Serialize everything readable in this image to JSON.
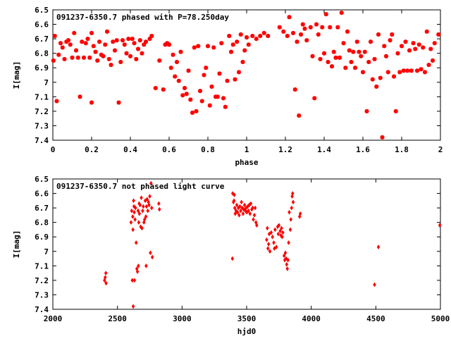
{
  "chart_data": [
    {
      "type": "scatter",
      "title": "091237-6350.7 phased with P=78.250day",
      "xlabel": "phase",
      "ylabel": "I[mag]",
      "xlim": [
        0,
        2
      ],
      "ylim": [
        7.4,
        6.5
      ],
      "y_inverted": true,
      "grid": false,
      "marker_color": "#ff0000",
      "marker": "asterisk",
      "xticks": [
        "0",
        "0.2",
        "0.4",
        "0.6",
        "0.8",
        "1",
        "1.2",
        "1.4",
        "1.6",
        "1.8",
        "2"
      ],
      "yticks": [
        "6.5",
        "6.6",
        "6.7",
        "6.8",
        "6.9",
        "7",
        "7.1",
        "7.2",
        "7.3",
        "7.4"
      ],
      "points": [
        [
          0.003,
          6.85
        ],
        [
          0.01,
          6.68
        ],
        [
          0.02,
          7.13
        ],
        [
          0.03,
          6.81
        ],
        [
          0.04,
          6.73
        ],
        [
          0.05,
          6.76
        ],
        [
          0.06,
          6.84
        ],
        [
          0.07,
          6.72
        ],
        [
          0.08,
          6.71
        ],
        [
          0.09,
          6.74
        ],
        [
          0.1,
          6.83
        ],
        [
          0.11,
          6.66
        ],
        [
          0.12,
          6.78
        ],
        [
          0.13,
          6.83
        ],
        [
          0.14,
          7.1
        ],
        [
          0.15,
          6.72
        ],
        [
          0.16,
          6.83
        ],
        [
          0.17,
          6.73
        ],
        [
          0.18,
          6.7
        ],
        [
          0.19,
          6.83
        ],
        [
          0.2,
          6.66
        ],
        [
          0.2,
          7.14
        ],
        [
          0.21,
          6.75
        ],
        [
          0.22,
          6.79
        ],
        [
          0.23,
          6.85
        ],
        [
          0.24,
          6.72
        ],
        [
          0.25,
          6.81
        ],
        [
          0.26,
          6.82
        ],
        [
          0.27,
          6.74
        ],
        [
          0.28,
          6.65
        ],
        [
          0.29,
          6.84
        ],
        [
          0.3,
          6.88
        ],
        [
          0.31,
          6.72
        ],
        [
          0.32,
          6.78
        ],
        [
          0.33,
          6.71
        ],
        [
          0.34,
          7.14
        ],
        [
          0.35,
          6.86
        ],
        [
          0.36,
          6.71
        ],
        [
          0.37,
          6.74
        ],
        [
          0.38,
          6.8
        ],
        [
          0.39,
          6.7
        ],
        [
          0.4,
          6.82
        ],
        [
          0.41,
          6.7
        ],
        [
          0.42,
          6.73
        ],
        [
          0.43,
          6.84
        ],
        [
          0.44,
          6.77
        ],
        [
          0.45,
          6.71
        ],
        [
          0.46,
          6.8
        ],
        [
          0.47,
          6.74
        ],
        [
          0.48,
          6.72
        ],
        [
          0.5,
          6.7
        ],
        [
          0.51,
          6.68
        ],
        [
          0.53,
          7.04
        ],
        [
          0.55,
          6.85
        ],
        [
          0.57,
          7.05
        ],
        [
          0.58,
          6.74
        ],
        [
          0.59,
          6.73
        ],
        [
          0.6,
          6.74
        ],
        [
          0.61,
          6.9
        ],
        [
          0.62,
          6.81
        ],
        [
          0.63,
          6.96
        ],
        [
          0.64,
          6.86
        ],
        [
          0.65,
          6.99
        ],
        [
          0.66,
          6.79
        ],
        [
          0.67,
          7.09
        ],
        [
          0.68,
          7.04
        ],
        [
          0.69,
          7.08
        ],
        [
          0.7,
          6.92
        ],
        [
          0.71,
          7.12
        ],
        [
          0.72,
          7.21
        ],
        [
          0.73,
          6.76
        ],
        [
          0.74,
          7.2
        ],
        [
          0.75,
          6.75
        ],
        [
          0.76,
          7.06
        ],
        [
          0.77,
          7.13
        ],
        [
          0.78,
          6.95
        ],
        [
          0.79,
          6.9
        ],
        [
          0.8,
          6.75
        ],
        [
          0.81,
          7.16
        ],
        [
          0.82,
          7.03
        ],
        [
          0.83,
          6.76
        ],
        [
          0.84,
          7.1
        ],
        [
          0.85,
          7.1
        ],
        [
          0.86,
          6.94
        ],
        [
          0.87,
          6.73
        ],
        [
          0.88,
          7.11
        ],
        [
          0.89,
          7.17
        ],
        [
          0.9,
          6.99
        ],
        [
          0.91,
          6.68
        ],
        [
          0.92,
          6.79
        ],
        [
          0.93,
          6.74
        ],
        [
          0.94,
          6.98
        ],
        [
          0.95,
          6.72
        ],
        [
          0.96,
          6.93
        ],
        [
          0.97,
          6.67
        ],
        [
          0.98,
          6.86
        ],
        [
          0.99,
          6.78
        ],
        [
          1.0,
          6.69
        ],
        [
          1.01,
          6.74
        ],
        [
          1.03,
          6.68
        ],
        [
          1.05,
          6.7
        ],
        [
          1.07,
          6.68
        ],
        [
          1.09,
          6.66
        ],
        [
          1.11,
          6.68
        ],
        [
          1.17,
          6.62
        ],
        [
          1.19,
          6.65
        ],
        [
          1.21,
          6.68
        ],
        [
          1.22,
          6.55
        ],
        [
          1.24,
          6.66
        ],
        [
          1.25,
          7.05
        ],
        [
          1.26,
          6.72
        ],
        [
          1.27,
          7.23
        ],
        [
          1.28,
          6.67
        ],
        [
          1.29,
          6.6
        ],
        [
          1.3,
          6.63
        ],
        [
          1.31,
          6.71
        ],
        [
          1.33,
          6.62
        ],
        [
          1.34,
          6.82
        ],
        [
          1.35,
          7.11
        ],
        [
          1.36,
          6.6
        ],
        [
          1.37,
          6.67
        ],
        [
          1.38,
          6.84
        ],
        [
          1.39,
          6.62
        ],
        [
          1.4,
          6.8
        ],
        [
          1.41,
          6.53
        ],
        [
          1.42,
          6.86
        ],
        [
          1.43,
          6.62
        ],
        [
          1.44,
          6.89
        ],
        [
          1.45,
          6.79
        ],
        [
          1.46,
          6.83
        ],
        [
          1.47,
          6.62
        ],
        [
          1.48,
          6.83
        ],
        [
          1.49,
          6.52
        ],
        [
          1.5,
          6.73
        ],
        [
          1.51,
          6.9
        ],
        [
          1.52,
          6.65
        ],
        [
          1.53,
          6.78
        ],
        [
          1.54,
          6.86
        ],
        [
          1.55,
          6.79
        ],
        [
          1.56,
          6.9
        ],
        [
          1.57,
          6.72
        ],
        [
          1.58,
          6.79
        ],
        [
          1.59,
          6.82
        ],
        [
          1.6,
          6.93
        ],
        [
          1.61,
          6.79
        ],
        [
          1.62,
          7.2
        ],
        [
          1.63,
          6.86
        ],
        [
          1.64,
          6.72
        ],
        [
          1.65,
          6.98
        ],
        [
          1.66,
          6.84
        ],
        [
          1.67,
          7.03
        ],
        [
          1.68,
          6.67
        ],
        [
          1.69,
          6.97
        ],
        [
          1.7,
          7.38
        ],
        [
          1.71,
          6.75
        ],
        [
          1.72,
          6.82
        ],
        [
          1.73,
          6.93
        ],
        [
          1.74,
          6.71
        ],
        [
          1.75,
          6.67
        ],
        [
          1.76,
          6.96
        ],
        [
          1.77,
          7.2
        ],
        [
          1.78,
          6.8
        ],
        [
          1.79,
          6.93
        ],
        [
          1.8,
          6.75
        ],
        [
          1.81,
          6.92
        ],
        [
          1.82,
          6.72
        ],
        [
          1.83,
          6.92
        ],
        [
          1.84,
          6.78
        ],
        [
          1.85,
          6.92
        ],
        [
          1.86,
          6.73
        ],
        [
          1.87,
          6.77
        ],
        [
          1.88,
          6.92
        ],
        [
          1.89,
          6.74
        ],
        [
          1.9,
          6.91
        ],
        [
          1.91,
          6.76
        ],
        [
          1.92,
          6.93
        ],
        [
          1.93,
          6.65
        ],
        [
          1.94,
          6.88
        ],
        [
          1.95,
          6.77
        ],
        [
          1.96,
          6.85
        ],
        [
          1.97,
          6.73
        ],
        [
          1.99,
          6.67
        ]
      ]
    },
    {
      "type": "scatter",
      "title": "091237-6350.7 not phased light curve",
      "xlabel": "hjd0",
      "ylabel": "I[mag]",
      "xlim": [
        2000,
        5000
      ],
      "ylim": [
        7.4,
        6.5
      ],
      "y_inverted": true,
      "grid": false,
      "marker_color": "#ff0000",
      "marker": "diamond",
      "xticks": [
        "2000",
        "2500",
        "3000",
        "3500",
        "4000",
        "4500",
        "5000"
      ],
      "yticks": [
        "6.5",
        "6.6",
        "6.7",
        "6.8",
        "6.9",
        "7",
        "7.1",
        "7.2",
        "7.3",
        "7.4"
      ],
      "points": [
        [
          2400,
          7.2
        ],
        [
          2405,
          7.18
        ],
        [
          2410,
          7.15
        ],
        [
          2412,
          7.22
        ],
        [
          2605,
          6.8
        ],
        [
          2610,
          6.72
        ],
        [
          2615,
          7.2
        ],
        [
          2618,
          6.76
        ],
        [
          2620,
          6.85
        ],
        [
          2622,
          7.38
        ],
        [
          2625,
          6.65
        ],
        [
          2628,
          6.69
        ],
        [
          2630,
          6.73
        ],
        [
          2632,
          7.2
        ],
        [
          2636,
          6.78
        ],
        [
          2640,
          6.7
        ],
        [
          2645,
          6.94
        ],
        [
          2650,
          7.12
        ],
        [
          2655,
          7.14
        ],
        [
          2660,
          6.72
        ],
        [
          2662,
          7.1
        ],
        [
          2665,
          6.8
        ],
        [
          2668,
          6.67
        ],
        [
          2670,
          6.74
        ],
        [
          2675,
          6.68
        ],
        [
          2680,
          6.83
        ],
        [
          2685,
          6.63
        ],
        [
          2690,
          6.84
        ],
        [
          2695,
          6.72
        ],
        [
          2700,
          6.69
        ],
        [
          2705,
          6.8
        ],
        [
          2710,
          6.78
        ],
        [
          2715,
          6.65
        ],
        [
          2720,
          6.76
        ],
        [
          2722,
          7.1
        ],
        [
          2725,
          6.69
        ],
        [
          2730,
          6.64
        ],
        [
          2735,
          6.72
        ],
        [
          2740,
          6.66
        ],
        [
          2745,
          6.68
        ],
        [
          2750,
          6.62
        ],
        [
          2755,
          7.01
        ],
        [
          2760,
          6.53
        ],
        [
          2765,
          6.7
        ],
        [
          2770,
          7.04
        ],
        [
          2820,
          6.67
        ],
        [
          2825,
          6.71
        ],
        [
          3390,
          7.05
        ],
        [
          3392,
          6.6
        ],
        [
          3398,
          6.66
        ],
        [
          3402,
          6.65
        ],
        [
          3405,
          6.61
        ],
        [
          3408,
          6.7
        ],
        [
          3412,
          6.74
        ],
        [
          3418,
          6.72
        ],
        [
          3424,
          6.68
        ],
        [
          3430,
          6.73
        ],
        [
          3436,
          6.7
        ],
        [
          3442,
          6.75
        ],
        [
          3448,
          6.69
        ],
        [
          3454,
          6.72
        ],
        [
          3460,
          6.66
        ],
        [
          3466,
          6.7
        ],
        [
          3472,
          6.74
        ],
        [
          3478,
          6.71
        ],
        [
          3484,
          6.68
        ],
        [
          3490,
          6.72
        ],
        [
          3496,
          6.7
        ],
        [
          3502,
          6.73
        ],
        [
          3508,
          6.69
        ],
        [
          3514,
          6.72
        ],
        [
          3520,
          6.68
        ],
        [
          3526,
          6.74
        ],
        [
          3532,
          6.67
        ],
        [
          3540,
          6.71
        ],
        [
          3546,
          6.7
        ],
        [
          3552,
          6.78
        ],
        [
          3560,
          6.75
        ],
        [
          3566,
          6.7
        ],
        [
          3572,
          6.8
        ],
        [
          3578,
          6.82
        ],
        [
          3655,
          6.92
        ],
        [
          3660,
          6.84
        ],
        [
          3665,
          6.98
        ],
        [
          3670,
          6.95
        ],
        [
          3675,
          6.88
        ],
        [
          3680,
          7.0
        ],
        [
          3690,
          6.87
        ],
        [
          3700,
          6.9
        ],
        [
          3710,
          6.94
        ],
        [
          3715,
          6.98
        ],
        [
          3720,
          6.85
        ],
        [
          3730,
          6.97
        ],
        [
          3740,
          6.83
        ],
        [
          3745,
          6.88
        ],
        [
          3750,
          6.82
        ],
        [
          3760,
          6.86
        ],
        [
          3765,
          6.89
        ],
        [
          3770,
          6.84
        ],
        [
          3775,
          6.9
        ],
        [
          3780,
          6.87
        ],
        [
          3790,
          7.03
        ],
        [
          3795,
          7.06
        ],
        [
          3800,
          7.01
        ],
        [
          3805,
          7.05
        ],
        [
          3810,
          7.09
        ],
        [
          3815,
          7.12
        ],
        [
          3820,
          7.06
        ],
        [
          3825,
          6.94
        ],
        [
          3830,
          6.73
        ],
        [
          3838,
          6.85
        ],
        [
          3842,
          6.78
        ],
        [
          3848,
          6.7
        ],
        [
          3852,
          6.62
        ],
        [
          3856,
          6.6
        ],
        [
          3860,
          6.66
        ],
        [
          3910,
          6.76
        ],
        [
          3915,
          6.74
        ],
        [
          4490,
          7.23
        ],
        [
          4520,
          6.97
        ],
        [
          4995,
          6.82
        ]
      ]
    }
  ]
}
